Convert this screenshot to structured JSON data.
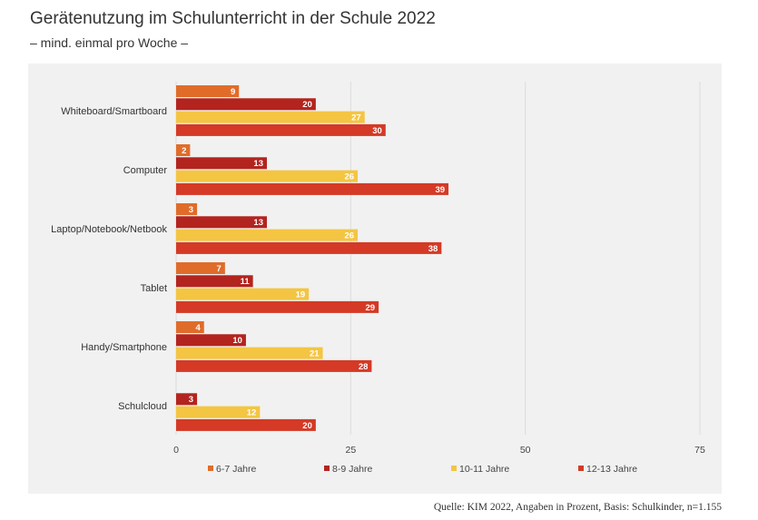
{
  "header": {
    "title": "Gerätenutzung im Schulunterricht in der Schule 2022",
    "subtitle": "– mind. einmal pro Woche –"
  },
  "source": "Quelle: KIM 2022, Angaben in Prozent, Basis: Schulkinder, n=1.155",
  "chart_data": {
    "type": "bar",
    "orientation": "horizontal",
    "title": "Gerätenutzung im Schulunterricht in der Schule 2022",
    "subtitle": "– mind. einmal pro Woche –",
    "categories": [
      "Whiteboard/Smartboard",
      "Computer",
      "Laptop/Notebook/Netbook",
      "Tablet",
      "Handy/Smartphone",
      "Schulcloud"
    ],
    "series": [
      {
        "name": "6-7 Jahre",
        "color": "#e06c2a",
        "values": [
          9,
          2,
          3,
          7,
          4,
          null
        ]
      },
      {
        "name": "8-9 Jahre",
        "color": "#b3241f",
        "values": [
          20,
          13,
          13,
          11,
          10,
          3
        ]
      },
      {
        "name": "10-11 Jahre",
        "color": "#f4c542",
        "values": [
          27,
          26,
          26,
          19,
          21,
          12
        ]
      },
      {
        "name": "12-13 Jahre",
        "color": "#d43a26",
        "values": [
          30,
          39,
          38,
          29,
          28,
          20
        ]
      }
    ],
    "xlim": [
      0,
      75
    ],
    "xticks": [
      0,
      25,
      50,
      75
    ],
    "grid": true,
    "legend_position": "bottom",
    "value_labels": true,
    "xlabel": "",
    "ylabel": ""
  }
}
